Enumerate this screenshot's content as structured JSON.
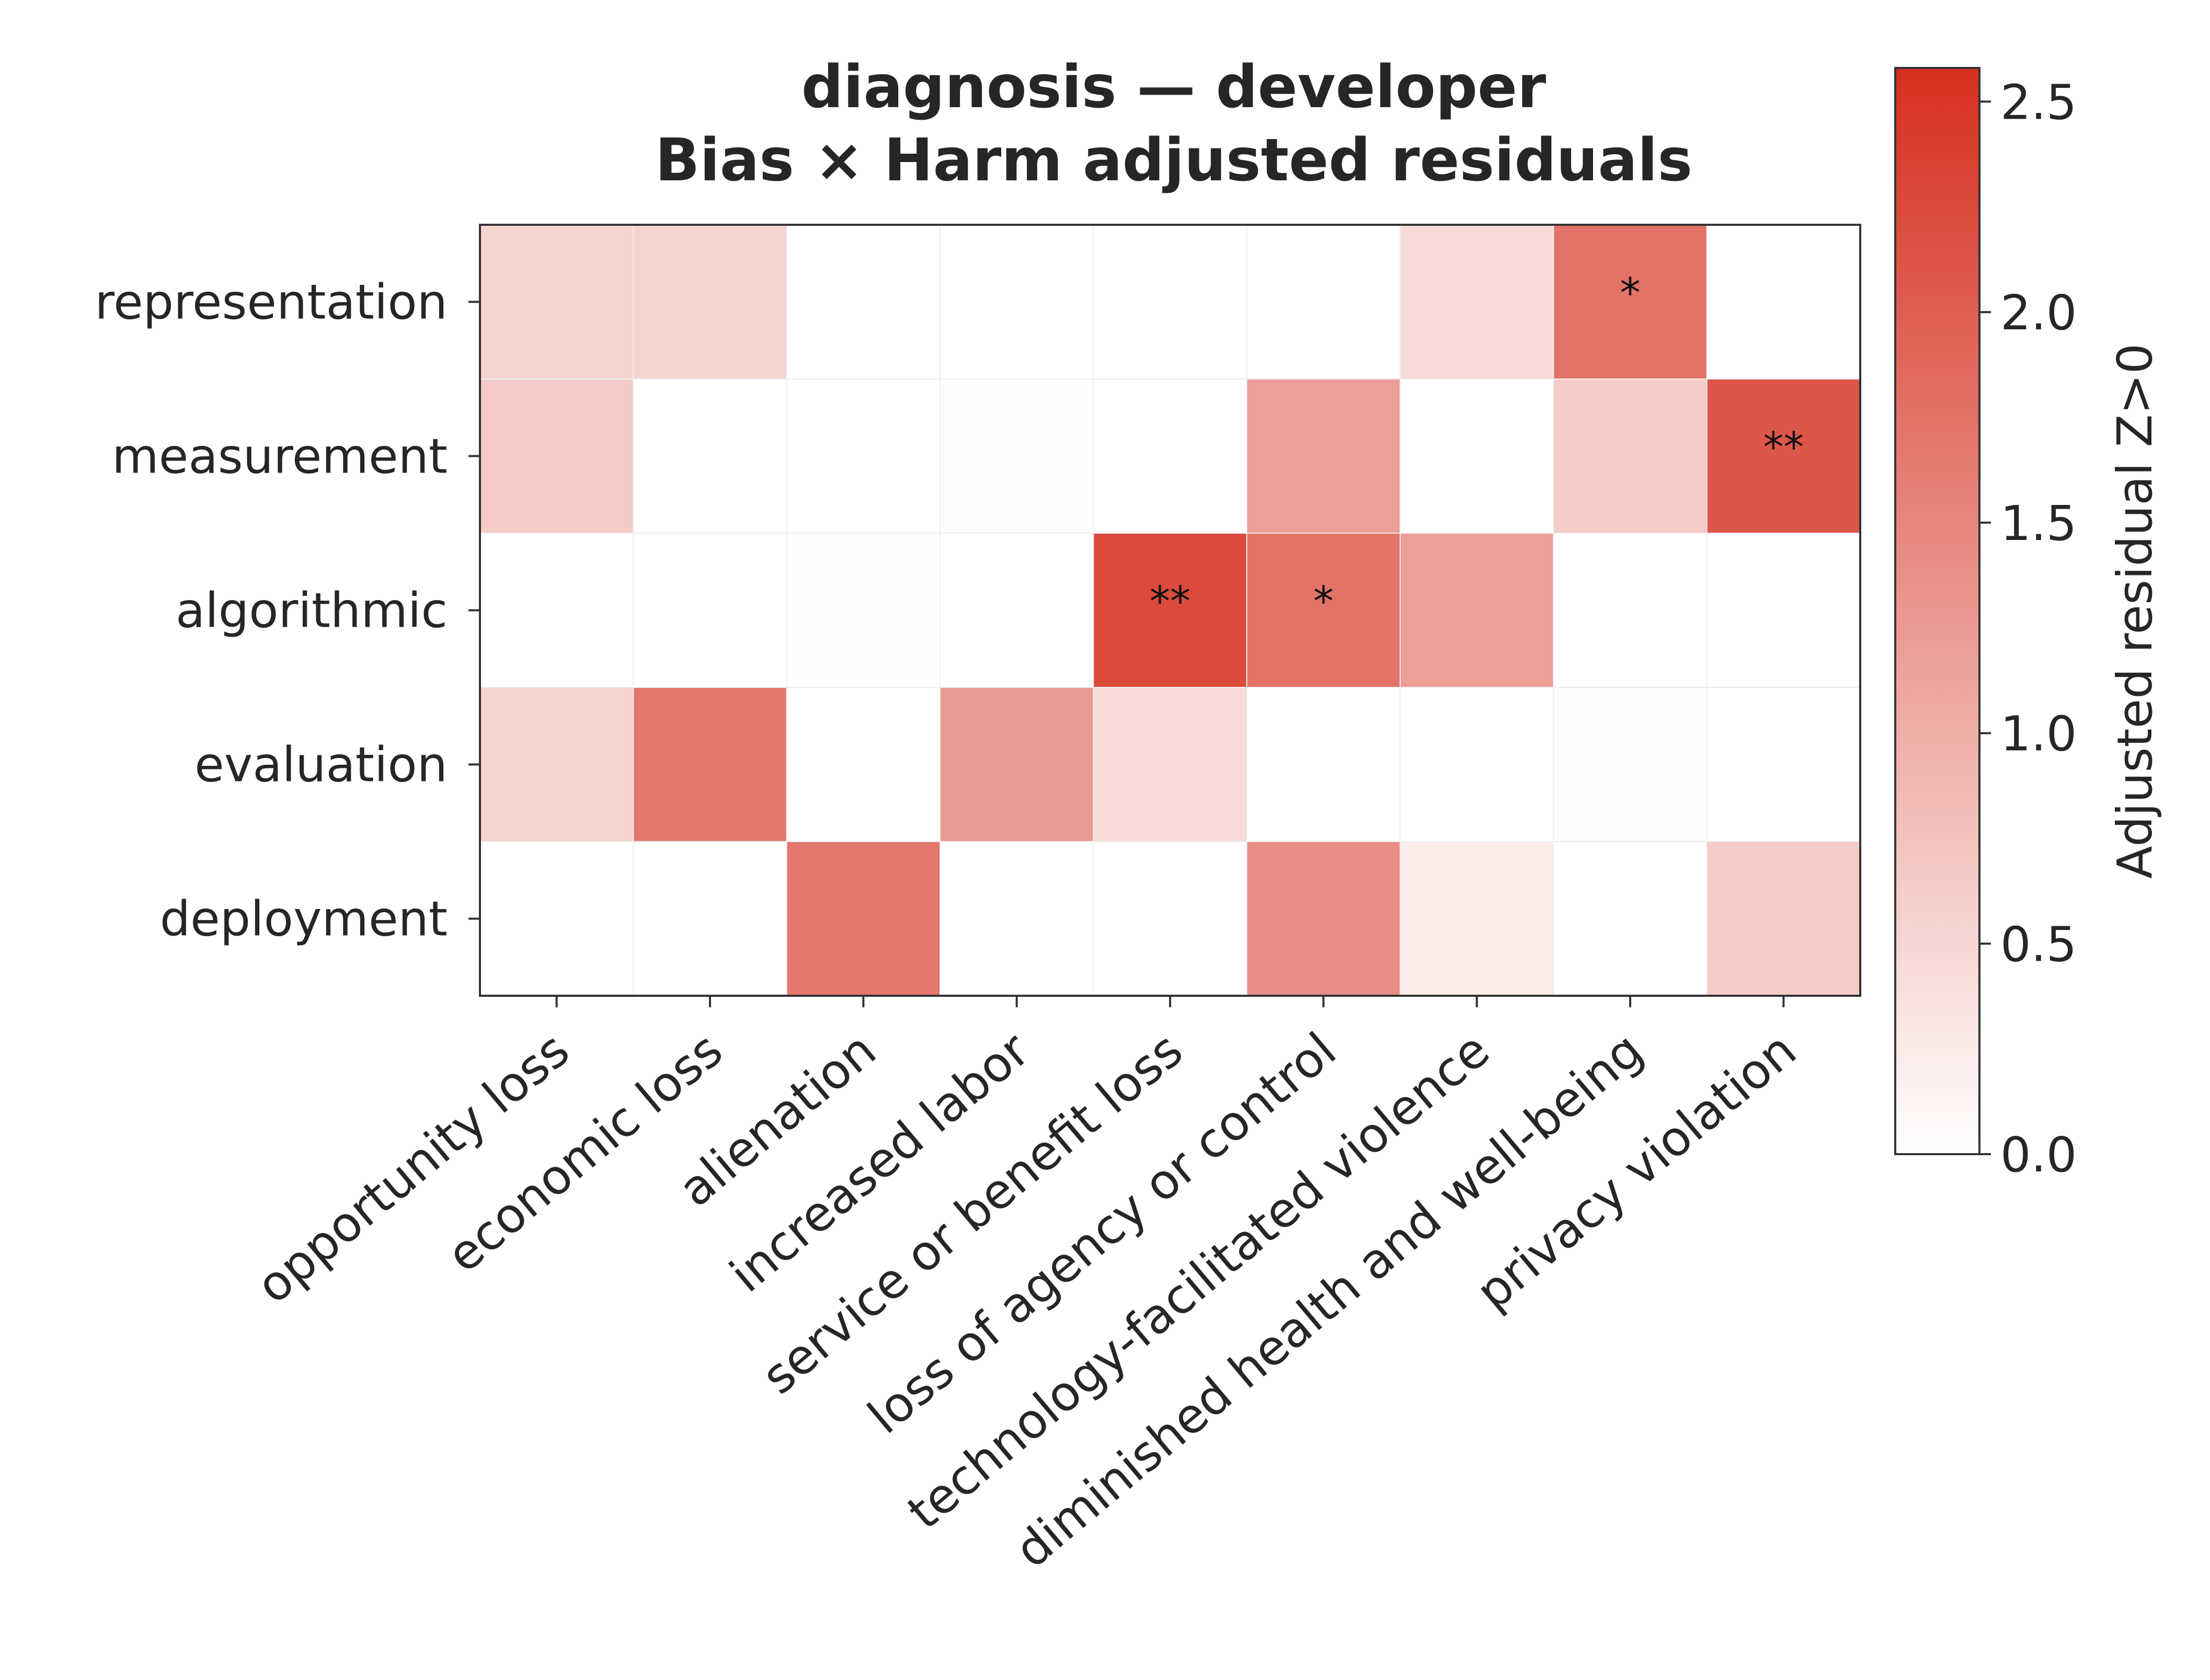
{
  "chart_data": {
    "type": "heatmap",
    "title": "diagnosis — developer",
    "subtitle": "Bias × Harm adjusted residuals",
    "rows": [
      "representation",
      "measurement",
      "algorithmic",
      "evaluation",
      "deployment"
    ],
    "columns": [
      "opportunity loss",
      "economic loss",
      "alienation",
      "increased labor",
      "service or benefit loss",
      "loss of agency or control",
      "technology-facilitated violence",
      "diminished health and well-being",
      "privacy violation"
    ],
    "values": [
      [
        0.55,
        0.55,
        0.0,
        0.0,
        0.0,
        0.0,
        0.45,
        1.75,
        0.0
      ],
      [
        0.65,
        0.0,
        0.0,
        0.03,
        0.0,
        1.2,
        0.0,
        0.65,
        2.1
      ],
      [
        0.0,
        0.0,
        0.02,
        0.0,
        2.25,
        1.75,
        1.2,
        0.0,
        0.0
      ],
      [
        0.55,
        1.7,
        0.0,
        1.25,
        0.45,
        0.0,
        0.0,
        0.02,
        0.0
      ],
      [
        0.0,
        0.0,
        1.7,
        0.0,
        0.0,
        1.4,
        0.25,
        0.0,
        0.65
      ]
    ],
    "significance": [
      [
        "",
        "",
        "",
        "",
        "",
        "",
        "",
        "*",
        ""
      ],
      [
        "",
        "",
        "",
        "",
        "",
        "",
        "",
        "",
        "**"
      ],
      [
        "",
        "",
        "",
        "",
        "**",
        "*",
        "",
        "",
        ""
      ],
      [
        "",
        "",
        "",
        "",
        "",
        "",
        "",
        "",
        ""
      ],
      [
        "",
        "",
        "",
        "",
        "",
        "",
        "",
        "",
        ""
      ]
    ],
    "colorbar": {
      "label": "Adjusted residual Z>0",
      "range": [
        0,
        2.58
      ],
      "ticks": [
        "0.0",
        "0.5",
        "1.0",
        "1.5",
        "2.0",
        "2.5"
      ],
      "tick_values": [
        0,
        0.5,
        1.0,
        1.5,
        2.0,
        2.5
      ],
      "color_low": "#ffffff",
      "color_high": "#d62f1f"
    }
  }
}
